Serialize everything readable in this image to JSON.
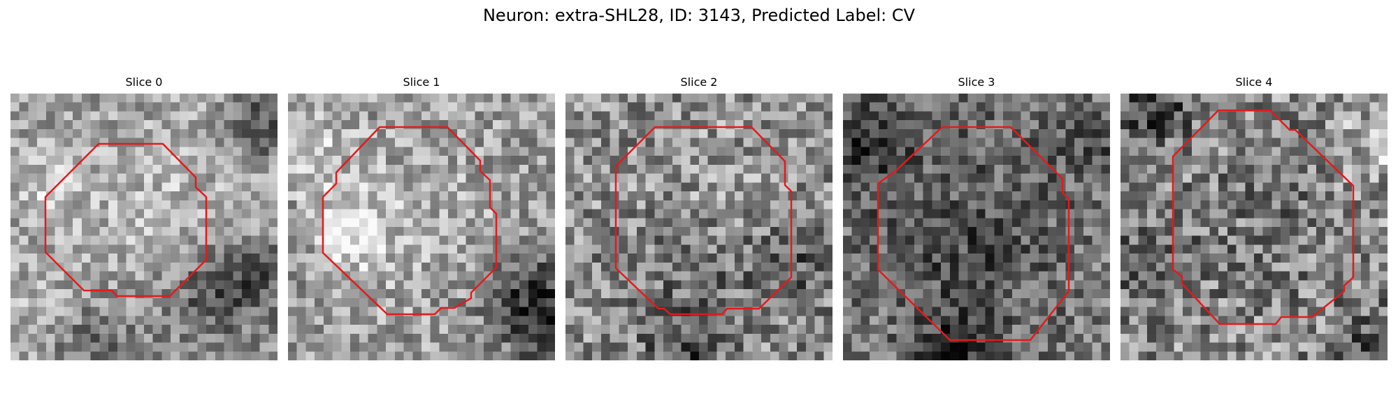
{
  "figure": {
    "title": "Neuron: extra-SHL28, ID: 3143, Predicted Label: CV",
    "outline_color": "#e31a1c",
    "colormap": "gray",
    "slices": [
      {
        "title": "Slice 0",
        "image": "grayscale-microscopy-patch",
        "contour": "red-octagon-outline"
      },
      {
        "title": "Slice 1",
        "image": "grayscale-microscopy-patch",
        "contour": "red-octagon-outline"
      },
      {
        "title": "Slice 2",
        "image": "grayscale-microscopy-patch",
        "contour": "red-octagon-outline"
      },
      {
        "title": "Slice 3",
        "image": "grayscale-microscopy-patch",
        "contour": "red-octagon-outline"
      },
      {
        "title": "Slice 4",
        "image": "grayscale-microscopy-patch",
        "contour": "red-octagon-outline"
      }
    ]
  }
}
